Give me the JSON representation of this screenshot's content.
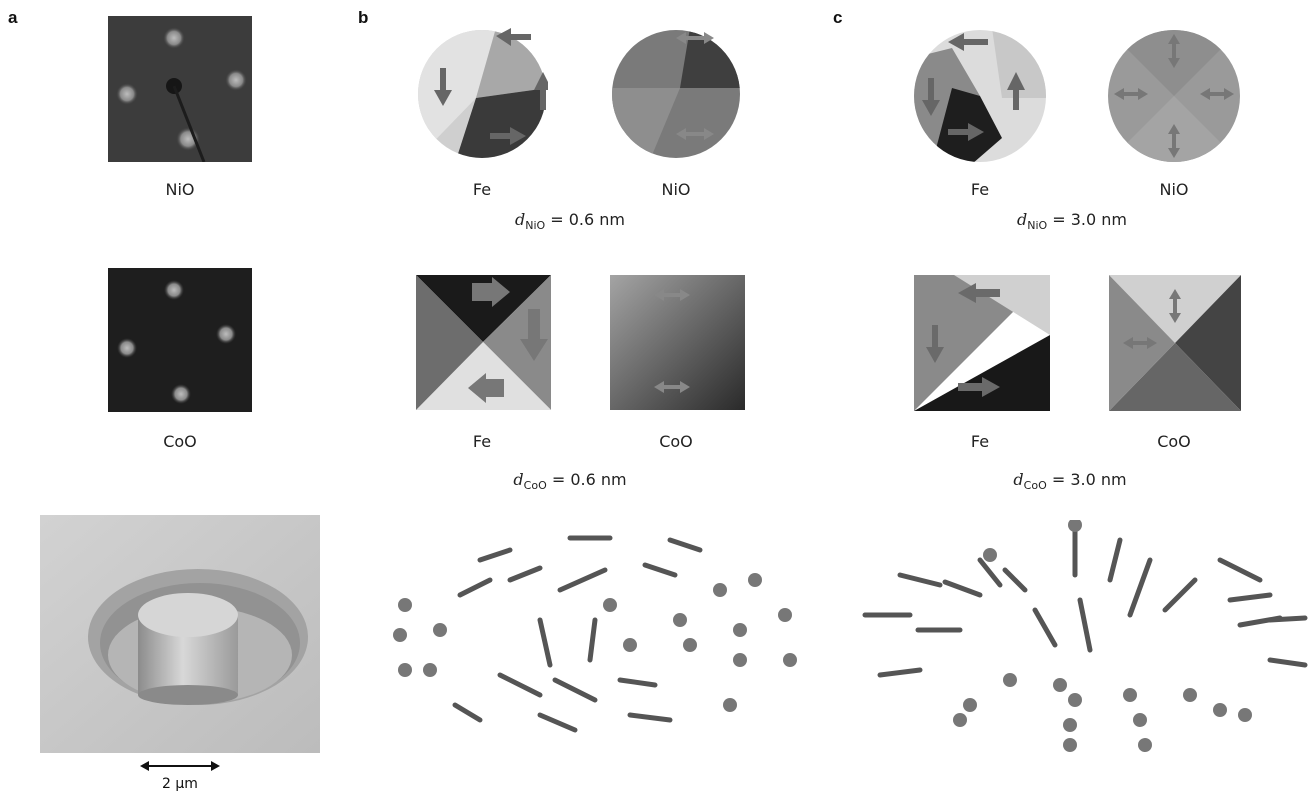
{
  "panels": {
    "a": "a",
    "b": "b",
    "c": "c"
  },
  "labels": {
    "nio": "NiO",
    "coo": "CoO",
    "fe": "Fe"
  },
  "thickness": {
    "b_nio": {
      "sym": "d",
      "sub": "NiO",
      "val": " = 0.6 nm"
    },
    "b_coo": {
      "sym": "d",
      "sub": "CoO",
      "val": " = 0.6 nm"
    },
    "c_nio": {
      "sym": "d",
      "sub": "NiO",
      "val": " = 3.0 nm"
    },
    "c_coo": {
      "sym": "d",
      "sub": "CoO",
      "val": " = 3.0 nm"
    }
  },
  "scalebar": "2 μm"
}
